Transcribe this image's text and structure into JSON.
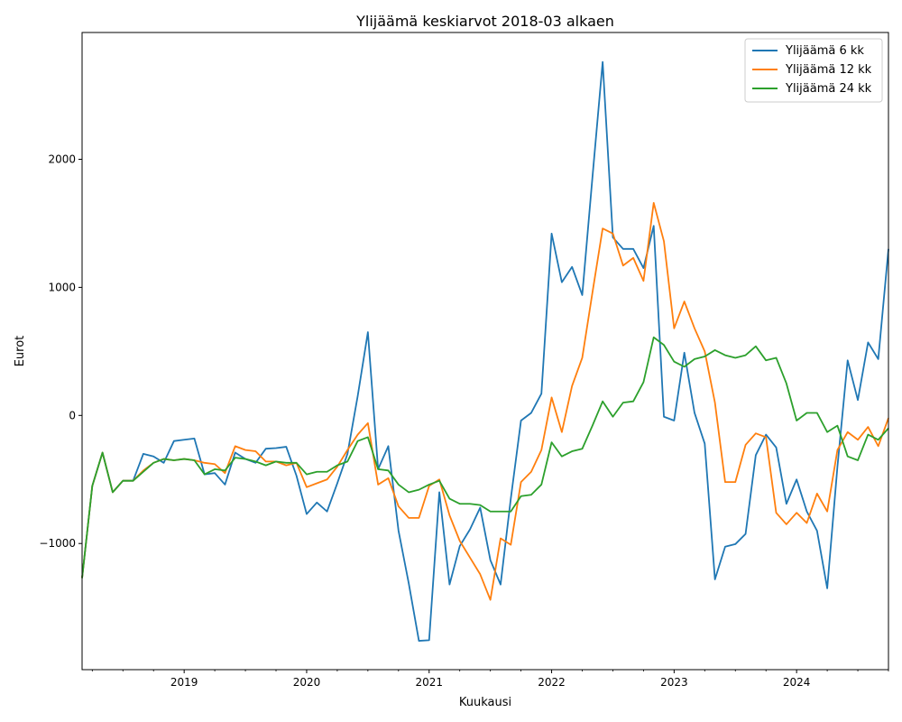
{
  "chart_data": {
    "type": "line",
    "title": "Ylijäämä keskiarvot 2018-03 alkaen",
    "xlabel": "Kuukausi",
    "ylabel": "Eurot",
    "x_start": "2018-03",
    "x_end": "2024-10",
    "xlim": [
      "2018-03",
      "2024-10"
    ],
    "ylim": [
      -1985,
      2990
    ],
    "x_ticks": [
      {
        "label": "2019",
        "value": "2019-01"
      },
      {
        "label": "2020",
        "value": "2020-01"
      },
      {
        "label": "2021",
        "value": "2021-01"
      },
      {
        "label": "2022",
        "value": "2022-01"
      },
      {
        "label": "2023",
        "value": "2023-01"
      },
      {
        "label": "2024",
        "value": "2024-01"
      }
    ],
    "y_ticks": [
      {
        "label": "−1000",
        "value": -1000
      },
      {
        "label": "0",
        "value": 0
      },
      {
        "label": "1000",
        "value": 1000
      },
      {
        "label": "2000",
        "value": 2000
      }
    ],
    "grid": false,
    "legend_position": "top-right",
    "series": [
      {
        "name": "Ylijäämä 6 kk",
        "color": "#1f77b4",
        "values": [
          -1270,
          -550,
          -290,
          -600,
          -510,
          -510,
          -300,
          -320,
          -370,
          -200,
          -190,
          -180,
          -460,
          -450,
          -540,
          -290,
          -340,
          -370,
          -260,
          -255,
          -245,
          -470,
          -770,
          -680,
          -750,
          -530,
          -300,
          150,
          650,
          -420,
          -240,
          -900,
          -1310,
          -1760,
          -1755,
          -600,
          -1320,
          -1020,
          -890,
          -720,
          -1130,
          -1320,
          -650,
          -40,
          20,
          170,
          1420,
          1040,
          1160,
          940,
          1860,
          2760,
          1390,
          1300,
          1300,
          1150,
          1480,
          -10,
          -40,
          490,
          20,
          -220,
          -1280,
          -1025,
          -1005,
          -925,
          -310,
          -150,
          -250,
          -690,
          -500,
          -750,
          -900,
          -1350,
          -400,
          430,
          120,
          570,
          440,
          1300
        ]
      },
      {
        "name": "Ylijäämä 12 kk",
        "color": "#ff7f0e",
        "values": [
          -1270,
          -550,
          -290,
          -600,
          -510,
          -510,
          -430,
          -370,
          -340,
          -350,
          -340,
          -350,
          -370,
          -380,
          -450,
          -240,
          -270,
          -280,
          -360,
          -360,
          -390,
          -370,
          -560,
          -530,
          -500,
          -400,
          -270,
          -150,
          -60,
          -540,
          -490,
          -710,
          -800,
          -800,
          -550,
          -500,
          -780,
          -980,
          -1110,
          -1240,
          -1440,
          -960,
          -1010,
          -520,
          -440,
          -270,
          140,
          -130,
          230,
          450,
          960,
          1460,
          1420,
          1170,
          1230,
          1050,
          1660,
          1360,
          680,
          890,
          680,
          500,
          100,
          -520,
          -520,
          -230,
          -140,
          -170,
          -760,
          -850,
          -760,
          -840,
          -610,
          -750,
          -270,
          -130,
          -190,
          -90,
          -240,
          -20
        ]
      },
      {
        "name": "Ylijäämä 24 kk",
        "color": "#2ca02c",
        "values": [
          -1270,
          -550,
          -290,
          -600,
          -510,
          -510,
          -440,
          -370,
          -340,
          -350,
          -340,
          -350,
          -460,
          -420,
          -430,
          -330,
          -340,
          -360,
          -390,
          -360,
          -370,
          -370,
          -460,
          -440,
          -440,
          -390,
          -360,
          -200,
          -170,
          -420,
          -430,
          -540,
          -600,
          -580,
          -540,
          -510,
          -650,
          -690,
          -690,
          -700,
          -750,
          -750,
          -750,
          -630,
          -620,
          -540,
          -210,
          -320,
          -280,
          -260,
          -80,
          110,
          -10,
          100,
          110,
          260,
          610,
          550,
          420,
          380,
          440,
          460,
          510,
          470,
          450,
          470,
          540,
          430,
          450,
          250,
          -40,
          20,
          20,
          -130,
          -80,
          -320,
          -350,
          -150,
          -190,
          -100
        ]
      }
    ]
  }
}
